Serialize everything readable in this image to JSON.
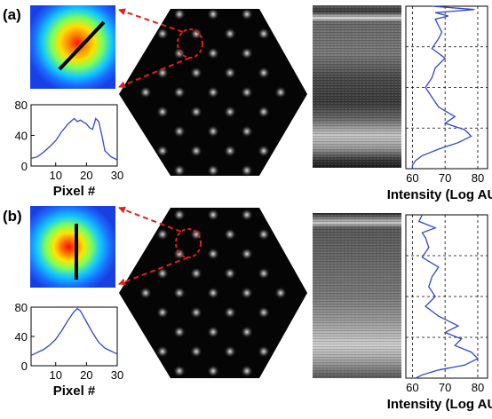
{
  "figure": {
    "panels": [
      {
        "label": "(a)",
        "profile": {
          "xlabel": "Pixel #",
          "yticks": [
            "0",
            "40",
            "80"
          ],
          "xticks": [
            "10",
            "20",
            "30"
          ]
        },
        "intensity": {
          "xlabel": "Intensity (Log AU)",
          "xticks": [
            "60",
            "70",
            "80"
          ]
        }
      },
      {
        "label": "(b)",
        "profile": {
          "xlabel": "Pixel #",
          "yticks": [
            "0",
            "40",
            "80"
          ],
          "xticks": [
            "10",
            "20",
            "30"
          ]
        },
        "intensity": {
          "xlabel": "Intensity (Log AU)",
          "xticks": [
            "60",
            "70",
            "80"
          ]
        }
      }
    ],
    "colors": {
      "curve": "#3344cc",
      "arrow": "#e0201c",
      "background": "#000000"
    }
  },
  "chart_data": [
    {
      "type": "line",
      "panel": "(a)",
      "xlabel": "Pixel #",
      "xlim": [
        2,
        30
      ],
      "ylim": [
        0,
        80
      ],
      "x": [
        2,
        4,
        6,
        8,
        10,
        12,
        14,
        16,
        17,
        18,
        20,
        21,
        22,
        23,
        24,
        25,
        26,
        28,
        30
      ],
      "y": [
        10,
        12,
        18,
        25,
        33,
        45,
        55,
        62,
        58,
        60,
        55,
        50,
        48,
        62,
        58,
        40,
        20,
        12,
        8
      ]
    },
    {
      "type": "line",
      "panel": "(b)",
      "xlabel": "Pixel #",
      "xlim": [
        2,
        30
      ],
      "ylim": [
        0,
        80
      ],
      "x": [
        2,
        4,
        6,
        8,
        10,
        12,
        14,
        16,
        17,
        18,
        20,
        22,
        24,
        26,
        28,
        30
      ],
      "y": [
        14,
        18,
        22,
        28,
        36,
        48,
        62,
        74,
        78,
        75,
        60,
        45,
        32,
        24,
        20,
        16
      ]
    },
    {
      "type": "line",
      "panel": "(a)",
      "xlabel": "Intensity (Log AU)",
      "xlim": [
        58,
        83
      ],
      "depth": [
        0,
        0.02,
        0.04,
        0.06,
        0.08,
        0.12,
        0.16,
        0.2,
        0.26,
        0.32,
        0.38,
        0.44,
        0.5,
        0.56,
        0.62,
        0.68,
        0.72,
        0.76,
        0.8,
        0.84,
        0.88,
        0.92,
        0.95,
        0.98,
        1.0
      ],
      "intensity": [
        66,
        79,
        67,
        71,
        67,
        68,
        69,
        68,
        66,
        70,
        67,
        66,
        64,
        66,
        68,
        73,
        70,
        76,
        78,
        74,
        68,
        63,
        61,
        60,
        60
      ]
    },
    {
      "type": "line",
      "panel": "(b)",
      "xlabel": "Intensity (Log AU)",
      "xlim": [
        58,
        83
      ],
      "depth": [
        0,
        0.04,
        0.08,
        0.11,
        0.14,
        0.2,
        0.26,
        0.32,
        0.38,
        0.44,
        0.5,
        0.56,
        0.62,
        0.68,
        0.72,
        0.76,
        0.8,
        0.84,
        0.88,
        0.92,
        0.95,
        0.98,
        1.0
      ],
      "intensity": [
        63,
        62,
        67,
        63,
        64,
        65,
        63,
        68,
        66,
        65,
        67,
        64,
        68,
        74,
        70,
        75,
        73,
        78,
        80,
        76,
        68,
        63,
        61
      ]
    }
  ]
}
